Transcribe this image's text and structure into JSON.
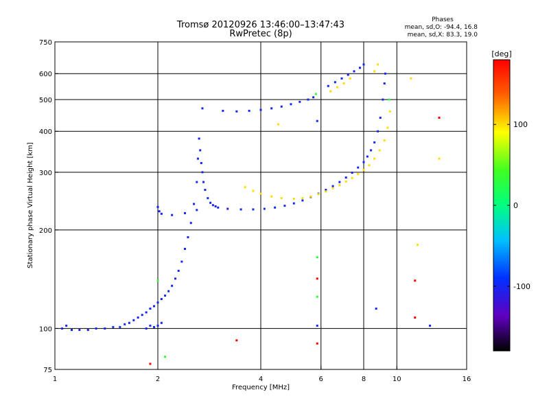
{
  "chart_data": {
    "type": "scatter",
    "title": "Tromsø 20120926 13:46:00–13:47:43",
    "subtitle": "RwPretec (8p)",
    "xlabel": "Frequency [MHz]",
    "ylabel": "Stationary phase Virtual Height [km]",
    "x_scale": "log",
    "y_scale": "log",
    "xlim": [
      1,
      16
    ],
    "ylim": [
      75,
      750
    ],
    "x_ticks": [
      1,
      2,
      4,
      6,
      8,
      10,
      16
    ],
    "x_tick_labels": [
      "1",
      "2",
      "4",
      "6",
      "8",
      "10",
      "16"
    ],
    "y_ticks": [
      75,
      100,
      200,
      300,
      400,
      500,
      600,
      750
    ],
    "y_tick_labels": [
      "75",
      "100",
      "200",
      "300",
      "400",
      "500",
      "600",
      "750"
    ],
    "x_gridlines": [
      2,
      4,
      6,
      8,
      10
    ],
    "y_gridlines": [
      100,
      200,
      300,
      400,
      500,
      600
    ],
    "grid": true,
    "phase_stats": {
      "heading": "Phases",
      "line_o": "mean, sd,O:  -94.4, 16.8",
      "line_x": "mean, sd,X:  83.3, 19.0"
    },
    "colorbar": {
      "unit_label": "[deg]",
      "range": [
        -180,
        180
      ],
      "ticks": [
        100,
        0,
        -100
      ],
      "tick_labels": [
        "100",
        "0",
        "-100"
      ]
    },
    "series": [
      {
        "color_phase_deg": -100,
        "points": [
          [
            1.05,
            100
          ],
          [
            1.08,
            102
          ],
          [
            1.12,
            99
          ],
          [
            1.18,
            99
          ],
          [
            1.25,
            99
          ],
          [
            1.32,
            100
          ],
          [
            1.4,
            100
          ],
          [
            1.48,
            101
          ],
          [
            1.55,
            101
          ],
          [
            1.6,
            103
          ],
          [
            1.65,
            104
          ],
          [
            1.7,
            106
          ],
          [
            1.75,
            108
          ],
          [
            1.8,
            110
          ],
          [
            1.85,
            112
          ],
          [
            1.9,
            115
          ],
          [
            1.95,
            117
          ],
          [
            2.0,
            120
          ],
          [
            2.05,
            123
          ],
          [
            2.1,
            126
          ],
          [
            2.15,
            130
          ],
          [
            2.2,
            135
          ],
          [
            2.25,
            142
          ],
          [
            2.3,
            150
          ],
          [
            2.35,
            160
          ],
          [
            2.4,
            175
          ],
          [
            2.45,
            190
          ],
          [
            2.5,
            210
          ],
          [
            2.55,
            240
          ],
          [
            2.6,
            280
          ],
          [
            2.62,
            330
          ],
          [
            2.64,
            380
          ],
          [
            2.66,
            350
          ],
          [
            2.68,
            320
          ],
          [
            2.7,
            300
          ],
          [
            2.72,
            280
          ],
          [
            2.75,
            265
          ],
          [
            2.8,
            250
          ],
          [
            2.85,
            242
          ],
          [
            2.9,
            238
          ],
          [
            2.95,
            236
          ],
          [
            3.0,
            234
          ],
          [
            3.2,
            232
          ],
          [
            3.5,
            231
          ],
          [
            3.8,
            231
          ],
          [
            4.1,
            232
          ],
          [
            4.4,
            234
          ],
          [
            4.7,
            237
          ],
          [
            5.0,
            241
          ],
          [
            5.3,
            246
          ],
          [
            5.6,
            252
          ],
          [
            5.9,
            258
          ],
          [
            6.2,
            265
          ],
          [
            6.5,
            272
          ],
          [
            6.8,
            280
          ],
          [
            7.1,
            289
          ],
          [
            7.4,
            299
          ],
          [
            7.7,
            310
          ],
          [
            8.0,
            322
          ],
          [
            8.2,
            335
          ],
          [
            8.4,
            350
          ],
          [
            8.6,
            370
          ],
          [
            8.8,
            400
          ],
          [
            8.95,
            440
          ],
          [
            9.1,
            500
          ],
          [
            9.2,
            560
          ],
          [
            9.25,
            600
          ],
          [
            2.0,
            235
          ],
          [
            2.02,
            228
          ],
          [
            2.05,
            224
          ],
          [
            2.2,
            222
          ],
          [
            2.4,
            225
          ],
          [
            2.6,
            230
          ],
          [
            3.1,
            462
          ],
          [
            3.4,
            460
          ],
          [
            3.7,
            462
          ],
          [
            4.0,
            465
          ],
          [
            4.3,
            470
          ],
          [
            4.6,
            476
          ],
          [
            4.9,
            484
          ],
          [
            5.2,
            492
          ],
          [
            5.5,
            500
          ],
          [
            5.7,
            508
          ],
          [
            6.3,
            550
          ],
          [
            6.6,
            565
          ],
          [
            6.9,
            580
          ],
          [
            7.2,
            595
          ],
          [
            7.5,
            610
          ],
          [
            7.8,
            625
          ],
          [
            8.0,
            640
          ],
          [
            1.85,
            100
          ],
          [
            1.9,
            102
          ],
          [
            1.95,
            101
          ],
          [
            2.0,
            102
          ],
          [
            2.05,
            104
          ],
          [
            5.85,
            102
          ],
          [
            5.85,
            430
          ],
          [
            12.5,
            102
          ],
          [
            8.7,
            115
          ],
          [
            2.7,
            470
          ]
        ]
      },
      {
        "color_phase_deg": 100,
        "points": [
          [
            3.6,
            270
          ],
          [
            3.8,
            263
          ],
          [
            4.0,
            258
          ],
          [
            4.3,
            253
          ],
          [
            4.6,
            250
          ],
          [
            5.0,
            249
          ],
          [
            5.3,
            250
          ],
          [
            5.6,
            253
          ],
          [
            5.9,
            257
          ],
          [
            6.2,
            262
          ],
          [
            6.5,
            268
          ],
          [
            6.8,
            274
          ],
          [
            7.1,
            281
          ],
          [
            7.4,
            288
          ],
          [
            7.7,
            296
          ],
          [
            8.0,
            305
          ],
          [
            8.3,
            315
          ],
          [
            8.6,
            330
          ],
          [
            8.9,
            350
          ],
          [
            9.2,
            375
          ],
          [
            9.4,
            410
          ],
          [
            9.55,
            460
          ],
          [
            6.4,
            530
          ],
          [
            6.7,
            545
          ],
          [
            7.0,
            560
          ],
          [
            7.3,
            580
          ],
          [
            8.6,
            610
          ],
          [
            8.8,
            640
          ],
          [
            4.5,
            420
          ],
          [
            11.0,
            580
          ],
          [
            11.5,
            180
          ],
          [
            13.3,
            330
          ]
        ]
      },
      {
        "color_phase_deg": 180,
        "points": [
          [
            5.85,
            90
          ],
          [
            5.85,
            142
          ],
          [
            3.4,
            92
          ],
          [
            11.3,
            140
          ],
          [
            11.3,
            108
          ],
          [
            13.3,
            440
          ],
          [
            1.9,
            78
          ]
        ]
      },
      {
        "color_phase_deg": 30,
        "points": [
          [
            5.85,
            165
          ],
          [
            5.85,
            125
          ],
          [
            2.0,
            140
          ],
          [
            2.1,
            82
          ],
          [
            5.8,
            520
          ],
          [
            9.5,
            500
          ]
        ]
      }
    ]
  }
}
